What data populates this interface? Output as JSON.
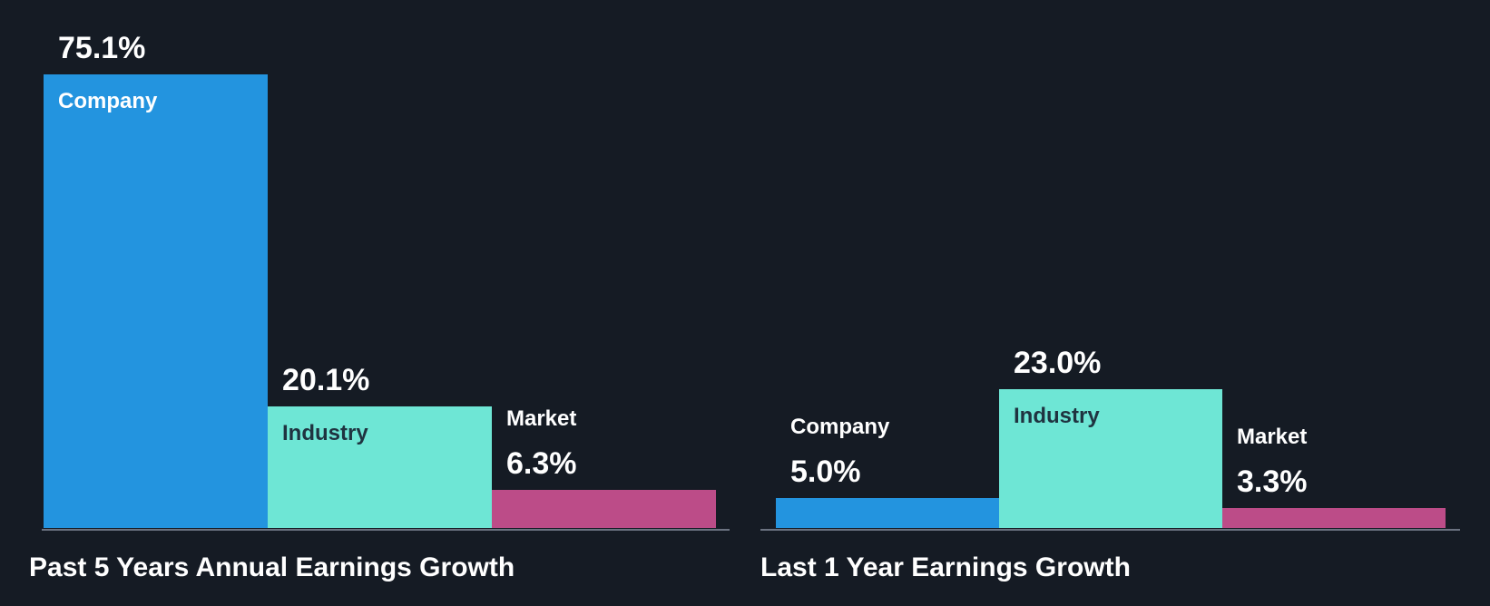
{
  "chart_data": [
    {
      "type": "bar",
      "title": "Past 5 Years Annual Earnings Growth",
      "categories": [
        "Company",
        "Industry",
        "Market"
      ],
      "values": [
        75.1,
        20.1,
        6.3
      ],
      "value_labels": [
        "75.1%",
        "20.1%",
        "6.3%"
      ],
      "colors": [
        "#2394df",
        "#6ee6d5",
        "#bc4c88"
      ]
    },
    {
      "type": "bar",
      "title": "Last 1 Year Earnings Growth",
      "categories": [
        "Company",
        "Industry",
        "Market"
      ],
      "values": [
        5.0,
        23.0,
        3.3
      ],
      "value_labels": [
        "5.0%",
        "23.0%",
        "3.3%"
      ],
      "colors": [
        "#2394df",
        "#6ee6d5",
        "#bc4c88"
      ]
    }
  ]
}
